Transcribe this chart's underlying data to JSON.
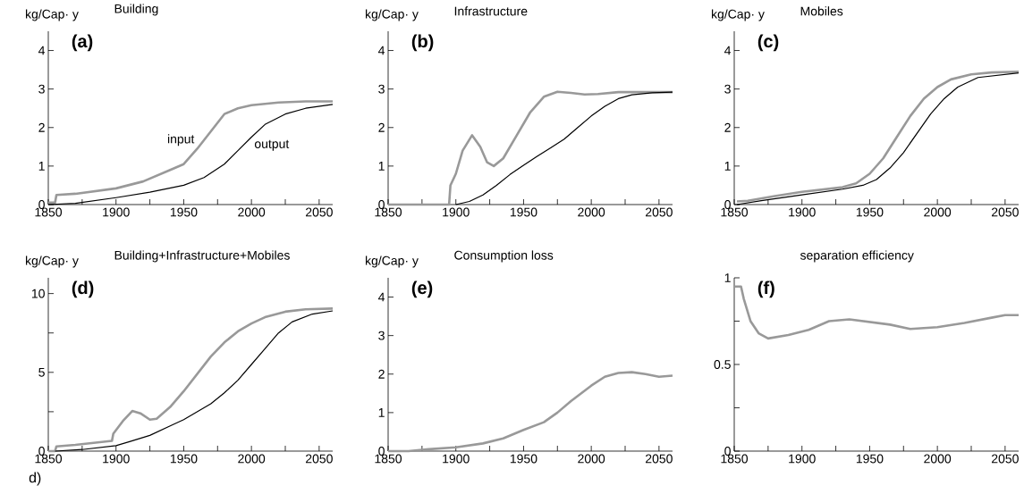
{
  "chart_data": [
    {
      "type": "line",
      "title": "Building",
      "ylabel": "kg/Cap· y",
      "annotations": [
        "(a)"
      ],
      "xlim": [
        1850,
        2060
      ],
      "ylim": [
        0,
        4.5
      ],
      "xticks": [
        1850,
        {
          "value": 1875,
          "label": null
        },
        1900,
        {
          "value": 1925,
          "label": null
        },
        1950,
        {
          "value": 1975,
          "label": null
        },
        2000,
        {
          "value": 2025,
          "label": null
        },
        2050
      ],
      "yticks": [
        0,
        1,
        2,
        3,
        4
      ],
      "series": [
        {
          "name": "input",
          "color": "#999999",
          "x": [
            1850,
            1855,
            1856,
            1870,
            1900,
            1920,
            1940,
            1950,
            1960,
            1970,
            1980,
            1990,
            2000,
            2020,
            2040,
            2060
          ],
          "values": [
            0.05,
            0.05,
            0.25,
            0.28,
            0.42,
            0.6,
            0.9,
            1.05,
            1.45,
            1.9,
            2.35,
            2.5,
            2.58,
            2.65,
            2.68,
            2.68
          ]
        },
        {
          "name": "output",
          "color": "#000000",
          "x": [
            1850,
            1870,
            1900,
            1925,
            1950,
            1965,
            1980,
            1990,
            2000,
            2010,
            2025,
            2040,
            2060
          ],
          "values": [
            0,
            0.03,
            0.18,
            0.32,
            0.5,
            0.7,
            1.05,
            1.4,
            1.75,
            2.08,
            2.35,
            2.5,
            2.6
          ]
        }
      ]
    },
    {
      "type": "line",
      "title": "Infrastructure",
      "ylabel": "kg/Cap· y",
      "annotations": [
        "(b)"
      ],
      "xlim": [
        1850,
        2060
      ],
      "ylim": [
        0,
        4.5
      ],
      "xticks": [
        1850,
        {
          "value": 1875,
          "label": null
        },
        1900,
        {
          "value": 1925,
          "label": null
        },
        1950,
        {
          "value": 1975,
          "label": null
        },
        2000,
        {
          "value": 2025,
          "label": null
        },
        2050
      ],
      "yticks": [
        0,
        1,
        2,
        3,
        4
      ],
      "series": [
        {
          "color": "#999999",
          "x": [
            1850,
            1895,
            1896,
            1900,
            1905,
            1912,
            1918,
            1923,
            1928,
            1935,
            1945,
            1955,
            1965,
            1975,
            1985,
            1995,
            2005,
            2020,
            2060
          ],
          "values": [
            0,
            0,
            0.5,
            0.8,
            1.4,
            1.8,
            1.5,
            1.1,
            1.0,
            1.2,
            1.8,
            2.4,
            2.8,
            2.93,
            2.9,
            2.86,
            2.87,
            2.92,
            2.92
          ]
        },
        {
          "color": "#000000",
          "x": [
            1900,
            1910,
            1920,
            1930,
            1940,
            1950,
            1960,
            1970,
            1980,
            1990,
            2000,
            2010,
            2020,
            2030,
            2045,
            2060
          ],
          "values": [
            0,
            0.08,
            0.25,
            0.5,
            0.78,
            1.02,
            1.25,
            1.47,
            1.7,
            2.0,
            2.3,
            2.55,
            2.75,
            2.85,
            2.9,
            2.92
          ]
        }
      ]
    },
    {
      "type": "line",
      "title": "Mobiles",
      "ylabel": "kg/Cap· y",
      "annotations": [
        "(c)"
      ],
      "xlim": [
        1850,
        2060
      ],
      "ylim": [
        0,
        4.5
      ],
      "xticks": [
        1850,
        {
          "value": 1875,
          "label": null
        },
        1900,
        {
          "value": 1925,
          "label": null
        },
        1950,
        {
          "value": 1975,
          "label": null
        },
        2000,
        {
          "value": 2025,
          "label": null
        },
        2050
      ],
      "yticks": [
        0,
        1,
        2,
        3,
        4
      ],
      "series": [
        {
          "color": "#999999",
          "x": [
            1852,
            1860,
            1880,
            1900,
            1930,
            1940,
            1950,
            1960,
            1970,
            1980,
            1990,
            2000,
            2010,
            2025,
            2040,
            2060
          ],
          "values": [
            0.08,
            0.1,
            0.22,
            0.33,
            0.45,
            0.55,
            0.8,
            1.2,
            1.75,
            2.3,
            2.75,
            3.05,
            3.25,
            3.38,
            3.43,
            3.45
          ]
        },
        {
          "color": "#000000",
          "x": [
            1852,
            1870,
            1900,
            1930,
            1945,
            1955,
            1965,
            1975,
            1985,
            1995,
            2005,
            2015,
            2030,
            2060
          ],
          "values": [
            0,
            0.1,
            0.25,
            0.4,
            0.5,
            0.65,
            0.95,
            1.35,
            1.85,
            2.35,
            2.75,
            3.05,
            3.3,
            3.42
          ]
        }
      ]
    },
    {
      "type": "line",
      "title": "Building+Infrastructure+Mobiles",
      "ylabel": "kg/Cap· y",
      "annotations": [
        "(d)",
        "d)"
      ],
      "xlim": [
        1850,
        2060
      ],
      "ylim": [
        0,
        11
      ],
      "xticks": [
        1850,
        {
          "value": 1875,
          "label": null
        },
        1900,
        {
          "value": 1925,
          "label": null
        },
        1950,
        {
          "value": 1975,
          "label": null
        },
        2000,
        {
          "value": 2025,
          "label": null
        },
        2050
      ],
      "yticks": [
        0,
        {
          "value": 2.5,
          "label": null
        },
        5,
        {
          "value": 7.5,
          "label": null
        },
        10
      ],
      "series": [
        {
          "color": "#999999",
          "x": [
            1850,
            1855,
            1856,
            1870,
            1897,
            1898,
            1905,
            1912,
            1918,
            1925,
            1930,
            1940,
            1950,
            1960,
            1970,
            1980,
            1990,
            2000,
            2010,
            2025,
            2040,
            2060
          ],
          "values": [
            0,
            0,
            0.3,
            0.4,
            0.65,
            1.1,
            1.9,
            2.55,
            2.4,
            2.0,
            2.05,
            2.8,
            3.8,
            4.9,
            6.0,
            6.9,
            7.6,
            8.1,
            8.5,
            8.85,
            9.0,
            9.05
          ]
        },
        {
          "color": "#000000",
          "x": [
            1855,
            1875,
            1900,
            1910,
            1925,
            1940,
            1950,
            1960,
            1970,
            1980,
            1990,
            2000,
            2010,
            2020,
            2030,
            2045,
            2060
          ],
          "values": [
            0,
            0.1,
            0.35,
            0.6,
            1.0,
            1.6,
            2.0,
            2.5,
            3.0,
            3.7,
            4.5,
            5.5,
            6.5,
            7.5,
            8.2,
            8.7,
            8.9
          ]
        }
      ]
    },
    {
      "type": "line",
      "title": "Consumption loss",
      "ylabel": "kg/Cap· y",
      "annotations": [
        "(e)"
      ],
      "xlim": [
        1850,
        2060
      ],
      "ylim": [
        0,
        4.5
      ],
      "xticks": [
        1850,
        {
          "value": 1875,
          "label": null
        },
        1900,
        {
          "value": 1925,
          "label": null
        },
        1950,
        {
          "value": 1975,
          "label": null
        },
        2000,
        {
          "value": 2025,
          "label": null
        },
        2050
      ],
      "yticks": [
        0,
        1,
        2,
        3,
        4
      ],
      "series": [
        {
          "color": "#999999",
          "x": [
            1850,
            1865,
            1880,
            1900,
            1920,
            1935,
            1950,
            1965,
            1975,
            1985,
            2000,
            2010,
            2020,
            2030,
            2040,
            2050,
            2060
          ],
          "values": [
            0,
            0,
            0.05,
            0.1,
            0.2,
            0.33,
            0.55,
            0.75,
            1.0,
            1.3,
            1.7,
            1.93,
            2.03,
            2.05,
            2.0,
            1.93,
            1.96
          ]
        }
      ]
    },
    {
      "type": "line",
      "title": "separation efficiency",
      "annotations": [
        "(f)"
      ],
      "xlim": [
        1850,
        2060
      ],
      "ylim": [
        0,
        1
      ],
      "xticks": [
        1850,
        {
          "value": 1875,
          "label": null
        },
        1900,
        {
          "value": 1925,
          "label": null
        },
        1950,
        {
          "value": 1975,
          "label": null
        },
        2000,
        {
          "value": 2025,
          "label": null
        },
        2050
      ],
      "yticks": [
        0,
        {
          "value": 0.25,
          "label": null
        },
        0.5,
        {
          "value": 0.75,
          "label": null
        },
        1
      ],
      "series": [
        {
          "color": "#999999",
          "x": [
            1850,
            1855,
            1857,
            1862,
            1868,
            1875,
            1890,
            1905,
            1920,
            1935,
            1950,
            1965,
            1980,
            2000,
            2020,
            2040,
            2050,
            2060
          ],
          "values": [
            0.95,
            0.95,
            0.88,
            0.75,
            0.68,
            0.65,
            0.67,
            0.7,
            0.75,
            0.76,
            0.745,
            0.73,
            0.705,
            0.715,
            0.74,
            0.77,
            0.785,
            0.785
          ]
        }
      ]
    }
  ]
}
